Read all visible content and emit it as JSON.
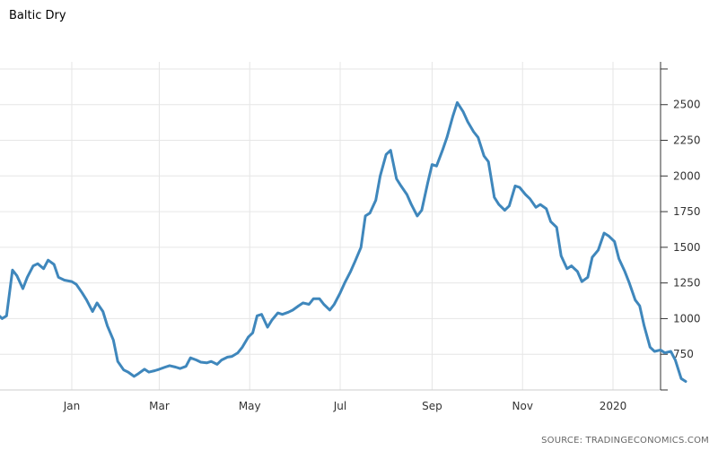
{
  "chart_data": {
    "type": "line",
    "title": "Baltic Dry",
    "source": "SOURCE: TRADINGECONOMICS.COM",
    "ylim": [
      500,
      2800
    ],
    "y_ticks": [
      750,
      1000,
      1250,
      1500,
      1750,
      2000,
      2250,
      2500
    ],
    "y_tick_labels": [
      "750",
      "1000",
      "1250",
      "1500",
      "1750",
      "2000",
      "2250",
      "2500"
    ],
    "x_tick_labels": [
      "Jan",
      "Mar",
      "May",
      "Jul",
      "Sep",
      "Nov",
      "2020"
    ],
    "x_tick_dates": [
      "2019-01-01",
      "2019-03-01",
      "2019-05-01",
      "2019-07-01",
      "2019-09-01",
      "2019-11-01",
      "2020-01-01"
    ],
    "grid": true,
    "series_color": "#3f87bc",
    "series": [
      {
        "points": [
          [
            "2018-11-01",
            1233
          ],
          [
            "2018-11-04",
            1140
          ],
          [
            "2018-11-08",
            1010
          ],
          [
            "2018-11-11",
            1040
          ],
          [
            "2018-11-15",
            1000
          ],
          [
            "2018-11-18",
            1020
          ],
          [
            "2018-11-22",
            1340
          ],
          [
            "2018-11-25",
            1300
          ],
          [
            "2018-11-29",
            1210
          ],
          [
            "2018-12-02",
            1290
          ],
          [
            "2018-12-06",
            1370
          ],
          [
            "2018-12-09",
            1385
          ],
          [
            "2018-12-13",
            1350
          ],
          [
            "2018-12-16",
            1410
          ],
          [
            "2018-12-20",
            1380
          ],
          [
            "2018-12-23",
            1290
          ],
          [
            "2018-12-27",
            1270
          ],
          [
            "2019-01-01",
            1260
          ],
          [
            "2019-01-04",
            1240
          ],
          [
            "2019-01-08",
            1180
          ],
          [
            "2019-01-11",
            1130
          ],
          [
            "2019-01-15",
            1050
          ],
          [
            "2019-01-18",
            1110
          ],
          [
            "2019-01-22",
            1050
          ],
          [
            "2019-01-25",
            950
          ],
          [
            "2019-01-29",
            850
          ],
          [
            "2019-02-01",
            700
          ],
          [
            "2019-02-05",
            640
          ],
          [
            "2019-02-08",
            625
          ],
          [
            "2019-02-12",
            595
          ],
          [
            "2019-02-15",
            615
          ],
          [
            "2019-02-19",
            645
          ],
          [
            "2019-02-22",
            625
          ],
          [
            "2019-02-26",
            635
          ],
          [
            "2019-03-01",
            645
          ],
          [
            "2019-03-05",
            660
          ],
          [
            "2019-03-08",
            670
          ],
          [
            "2019-03-12",
            660
          ],
          [
            "2019-03-15",
            650
          ],
          [
            "2019-03-19",
            665
          ],
          [
            "2019-03-22",
            725
          ],
          [
            "2019-03-26",
            710
          ],
          [
            "2019-03-29",
            695
          ],
          [
            "2019-04-02",
            690
          ],
          [
            "2019-04-05",
            700
          ],
          [
            "2019-04-09",
            680
          ],
          [
            "2019-04-12",
            710
          ],
          [
            "2019-04-16",
            730
          ],
          [
            "2019-04-19",
            735
          ],
          [
            "2019-04-23",
            760
          ],
          [
            "2019-04-26",
            800
          ],
          [
            "2019-04-30",
            870
          ],
          [
            "2019-05-03",
            900
          ],
          [
            "2019-05-06",
            1020
          ],
          [
            "2019-05-09",
            1030
          ],
          [
            "2019-05-13",
            940
          ],
          [
            "2019-05-16",
            990
          ],
          [
            "2019-05-20",
            1040
          ],
          [
            "2019-05-23",
            1030
          ],
          [
            "2019-05-27",
            1045
          ],
          [
            "2019-05-30",
            1060
          ],
          [
            "2019-06-03",
            1090
          ],
          [
            "2019-06-06",
            1110
          ],
          [
            "2019-06-10",
            1100
          ],
          [
            "2019-06-13",
            1140
          ],
          [
            "2019-06-17",
            1140
          ],
          [
            "2019-06-20",
            1100
          ],
          [
            "2019-06-24",
            1060
          ],
          [
            "2019-06-27",
            1100
          ],
          [
            "2019-07-01",
            1180
          ],
          [
            "2019-07-04",
            1250
          ],
          [
            "2019-07-08",
            1330
          ],
          [
            "2019-07-11",
            1400
          ],
          [
            "2019-07-15",
            1500
          ],
          [
            "2019-07-18",
            1720
          ],
          [
            "2019-07-21",
            1740
          ],
          [
            "2019-07-25",
            1830
          ],
          [
            "2019-07-28",
            2000
          ],
          [
            "2019-08-01",
            2150
          ],
          [
            "2019-08-04",
            2180
          ],
          [
            "2019-08-08",
            1980
          ],
          [
            "2019-08-11",
            1930
          ],
          [
            "2019-08-15",
            1870
          ],
          [
            "2019-08-18",
            1800
          ],
          [
            "2019-08-22",
            1720
          ],
          [
            "2019-08-25",
            1760
          ],
          [
            "2019-08-29",
            1950
          ],
          [
            "2019-09-01",
            2080
          ],
          [
            "2019-09-04",
            2070
          ],
          [
            "2019-09-08",
            2180
          ],
          [
            "2019-09-11",
            2270
          ],
          [
            "2019-09-15",
            2420
          ],
          [
            "2019-09-18",
            2515
          ],
          [
            "2019-09-22",
            2450
          ],
          [
            "2019-09-25",
            2380
          ],
          [
            "2019-09-29",
            2310
          ],
          [
            "2019-10-02",
            2270
          ],
          [
            "2019-10-06",
            2140
          ],
          [
            "2019-10-09",
            2100
          ],
          [
            "2019-10-13",
            1850
          ],
          [
            "2019-10-16",
            1800
          ],
          [
            "2019-10-20",
            1760
          ],
          [
            "2019-10-23",
            1790
          ],
          [
            "2019-10-27",
            1930
          ],
          [
            "2019-10-30",
            1920
          ],
          [
            "2019-11-03",
            1870
          ],
          [
            "2019-11-06",
            1840
          ],
          [
            "2019-11-10",
            1780
          ],
          [
            "2019-11-13",
            1800
          ],
          [
            "2019-11-17",
            1770
          ],
          [
            "2019-11-20",
            1680
          ],
          [
            "2019-11-24",
            1640
          ],
          [
            "2019-11-27",
            1440
          ],
          [
            "2019-12-01",
            1350
          ],
          [
            "2019-12-04",
            1370
          ],
          [
            "2019-12-08",
            1330
          ],
          [
            "2019-12-11",
            1260
          ],
          [
            "2019-12-15",
            1290
          ],
          [
            "2019-12-18",
            1430
          ],
          [
            "2019-12-22",
            1480
          ],
          [
            "2019-12-26",
            1600
          ],
          [
            "2019-12-29",
            1580
          ],
          [
            "2020-01-02",
            1540
          ],
          [
            "2020-01-05",
            1420
          ],
          [
            "2020-01-09",
            1330
          ],
          [
            "2020-01-12",
            1250
          ],
          [
            "2020-01-16",
            1130
          ],
          [
            "2020-01-19",
            1090
          ],
          [
            "2020-01-22",
            950
          ],
          [
            "2020-01-26",
            800
          ],
          [
            "2020-01-29",
            770
          ],
          [
            "2020-02-02",
            780
          ],
          [
            "2020-02-05",
            760
          ],
          [
            "2020-02-09",
            770
          ],
          [
            "2020-02-12",
            710
          ],
          [
            "2020-02-16",
            580
          ],
          [
            "2020-02-19",
            560
          ]
        ]
      }
    ]
  }
}
